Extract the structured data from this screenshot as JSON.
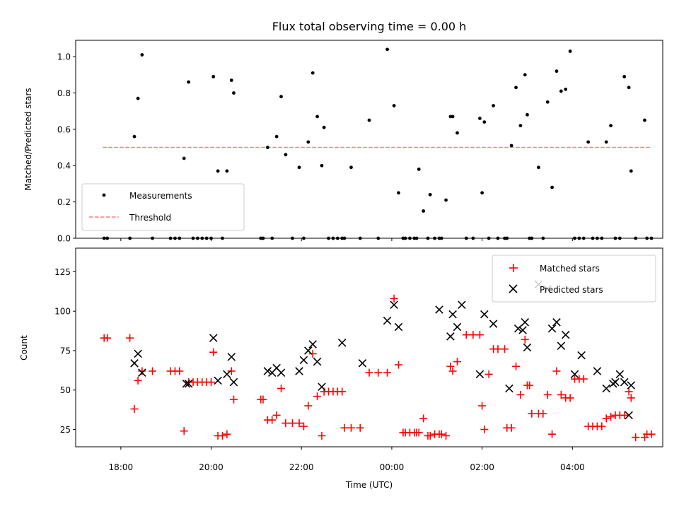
{
  "chart_data": [
    {
      "type": "scatter",
      "title": "Flux total observing time = 0.00 h",
      "ylabel": "Matched/Predicted stars",
      "xlabel": "",
      "xlim_hours": [
        17.0,
        30.0
      ],
      "ylim": [
        0,
        1.09
      ],
      "yticks": [
        "0.0",
        "0.2",
        "0.4",
        "0.6",
        "0.8",
        "1.0"
      ],
      "ytick_values": [
        0,
        0.2,
        0.4,
        0.6,
        0.8,
        1.0
      ],
      "legend_position": "lower-left",
      "threshold": {
        "name": "Threshold",
        "value": 0.5,
        "x_range_hours": [
          17.6,
          29.75
        ],
        "color": "#ff7f7f"
      },
      "series": [
        {
          "name": "Measurements",
          "color": "#000000",
          "x_hours": [
            17.63,
            17.7,
            18.2,
            18.3,
            18.38,
            18.47,
            18.7,
            19.1,
            19.2,
            19.3,
            19.4,
            19.5,
            19.6,
            19.7,
            19.8,
            19.9,
            20.0,
            20.05,
            20.15,
            20.25,
            20.35,
            20.45,
            20.5,
            21.1,
            21.15,
            21.25,
            21.35,
            21.45,
            21.55,
            21.65,
            21.8,
            21.95,
            22.05,
            22.15,
            22.25,
            22.35,
            22.45,
            22.5,
            22.6,
            22.7,
            22.8,
            22.9,
            22.95,
            23.1,
            23.3,
            23.5,
            23.7,
            23.9,
            24.05,
            24.15,
            24.25,
            24.3,
            24.4,
            24.5,
            24.55,
            24.6,
            24.7,
            24.8,
            24.85,
            24.95,
            25.05,
            25.1,
            25.2,
            25.3,
            25.35,
            25.45,
            25.65,
            25.8,
            25.95,
            26.0,
            26.05,
            26.15,
            26.25,
            26.35,
            26.5,
            26.55,
            26.65,
            26.75,
            26.85,
            26.95,
            27.0,
            27.05,
            27.1,
            27.25,
            27.35,
            27.45,
            27.55,
            27.65,
            27.75,
            27.85,
            27.95,
            28.05,
            28.15,
            28.25,
            28.35,
            28.45,
            28.55,
            28.65,
            28.75,
            28.85,
            28.95,
            29.05,
            29.15,
            29.25,
            29.3,
            29.4,
            29.6,
            29.65,
            29.75
          ],
          "y": [
            0.0,
            0.0,
            0.0,
            0.56,
            0.77,
            1.01,
            0.0,
            0.0,
            0.0,
            0.0,
            0.44,
            0.86,
            0.0,
            0.0,
            0.0,
            0.0,
            0.0,
            0.89,
            0.37,
            0.0,
            0.37,
            0.87,
            0.8,
            0.0,
            0.0,
            0.5,
            0.0,
            0.56,
            0.78,
            0.46,
            0.0,
            0.39,
            0.0,
            0.53,
            0.91,
            0.67,
            0.4,
            0.61,
            0.0,
            0.0,
            0.0,
            0.0,
            0.0,
            0.39,
            0.0,
            0.65,
            0.0,
            1.04,
            0.73,
            0.25,
            0.0,
            0.0,
            0.0,
            0.0,
            0.0,
            0.38,
            0.15,
            0.0,
            0.24,
            0.0,
            0.0,
            0.0,
            0.21,
            0.67,
            0.67,
            0.58,
            0.0,
            0.0,
            0.66,
            0.25,
            0.64,
            0.0,
            0.73,
            0.0,
            0.0,
            0.0,
            0.51,
            0.83,
            0.62,
            0.9,
            0.68,
            0.0,
            0.0,
            0.39,
            0.0,
            0.75,
            0.28,
            0.92,
            0.81,
            0.82,
            1.03,
            0.0,
            0.0,
            0.0,
            0.53,
            0.0,
            0.0,
            0.0,
            0.53,
            0.62,
            0.0,
            0.0,
            0.89,
            0.83,
            0.37,
            0.0,
            0.65,
            0.0,
            0.0
          ]
        }
      ]
    },
    {
      "type": "scatter",
      "title": "",
      "ylabel": "Count",
      "xlabel": "Time (UTC)",
      "xlim_hours": [
        17.0,
        30.0
      ],
      "ylim": [
        14,
        140
      ],
      "yticks": [
        "25",
        "50",
        "75",
        "100",
        "125"
      ],
      "ytick_values": [
        25,
        50,
        75,
        100,
        125
      ],
      "xticks": [
        "18:00",
        "20:00",
        "22:00",
        "00:00",
        "02:00",
        "04:00"
      ],
      "xtick_values_hours": [
        18,
        20,
        22,
        24,
        26,
        28
      ],
      "legend_position": "upper-right",
      "series": [
        {
          "name": "Matched stars",
          "marker": "plus",
          "color": "#ff0000",
          "x_hours": [
            17.63,
            17.7,
            18.2,
            18.3,
            18.38,
            18.47,
            18.7,
            19.1,
            19.2,
            19.3,
            19.4,
            19.5,
            19.6,
            19.7,
            19.8,
            19.9,
            20.0,
            20.05,
            20.15,
            20.25,
            20.35,
            20.45,
            20.5,
            21.1,
            21.15,
            21.25,
            21.35,
            21.45,
            21.55,
            21.65,
            21.8,
            21.95,
            22.05,
            22.15,
            22.25,
            22.35,
            22.45,
            22.5,
            22.6,
            22.7,
            22.8,
            22.9,
            22.95,
            23.1,
            23.3,
            23.5,
            23.7,
            23.9,
            24.05,
            24.15,
            24.25,
            24.3,
            24.4,
            24.5,
            24.55,
            24.6,
            24.7,
            24.8,
            24.85,
            24.95,
            25.05,
            25.1,
            25.2,
            25.3,
            25.35,
            25.45,
            25.65,
            25.8,
            25.95,
            26.0,
            26.05,
            26.15,
            26.25,
            26.35,
            26.5,
            26.55,
            26.65,
            26.75,
            26.85,
            26.95,
            27.0,
            27.05,
            27.1,
            27.25,
            27.35,
            27.45,
            27.55,
            27.65,
            27.75,
            27.85,
            27.95,
            28.05,
            28.15,
            28.25,
            28.35,
            28.45,
            28.55,
            28.65,
            28.75,
            28.85,
            28.95,
            29.05,
            29.15,
            29.25,
            29.3,
            29.4,
            29.6,
            29.65,
            29.75
          ],
          "y": [
            83,
            83,
            83,
            38,
            56,
            62,
            62,
            62,
            62,
            62,
            24,
            55,
            55,
            55,
            55,
            55,
            55,
            74,
            21,
            21,
            22,
            62,
            44,
            44,
            44,
            31,
            31,
            34,
            51,
            29,
            29,
            29,
            27,
            40,
            73,
            46,
            21,
            49,
            49,
            49,
            49,
            49,
            26,
            26,
            26,
            61,
            61,
            61,
            108,
            66,
            23,
            23,
            23,
            23,
            23,
            23,
            32,
            21,
            21,
            22,
            22,
            22,
            21,
            65,
            62,
            68,
            85,
            85,
            85,
            40,
            25,
            60,
            76,
            76,
            76,
            26,
            26,
            65,
            47,
            82,
            53,
            53,
            35,
            35,
            35,
            47,
            22,
            62,
            47,
            45,
            45,
            57,
            57,
            57,
            27,
            27,
            27,
            27,
            32,
            33,
            34,
            34,
            34,
            49,
            45,
            20,
            20,
            22,
            22
          ]
        },
        {
          "name": "Predicted stars",
          "marker": "x",
          "color": "#000000",
          "x_hours": [
            18.3,
            18.38,
            18.47,
            19.5,
            19.45,
            20.05,
            20.15,
            20.35,
            20.45,
            20.5,
            21.25,
            21.35,
            21.45,
            21.55,
            21.95,
            22.05,
            22.15,
            22.25,
            22.35,
            22.45,
            22.9,
            23.35,
            23.9,
            24.05,
            24.15,
            26.8,
            26.95,
            25.95,
            25.05,
            25.55,
            25.3,
            25.45,
            25.35,
            26.05,
            26.25,
            26.6,
            26.9,
            27.0,
            27.25,
            27.45,
            27.55,
            27.65,
            27.75,
            27.85,
            28.05,
            28.2,
            28.55,
            28.75,
            28.95,
            29.05,
            29.15,
            29.3,
            28.9,
            29.25
          ],
          "y": [
            67,
            73,
            61,
            54,
            54,
            83,
            56,
            60,
            71,
            55,
            62,
            61,
            64,
            61,
            62,
            69,
            75,
            79,
            68,
            52,
            80,
            67,
            94,
            104,
            90,
            89,
            93,
            60,
            101,
            104,
            84,
            90,
            98,
            98,
            92,
            51,
            88,
            77,
            117,
            114,
            89,
            93,
            78,
            85,
            60,
            72,
            62,
            51,
            55,
            60,
            55,
            53,
            54,
            34
          ]
        }
      ]
    }
  ]
}
